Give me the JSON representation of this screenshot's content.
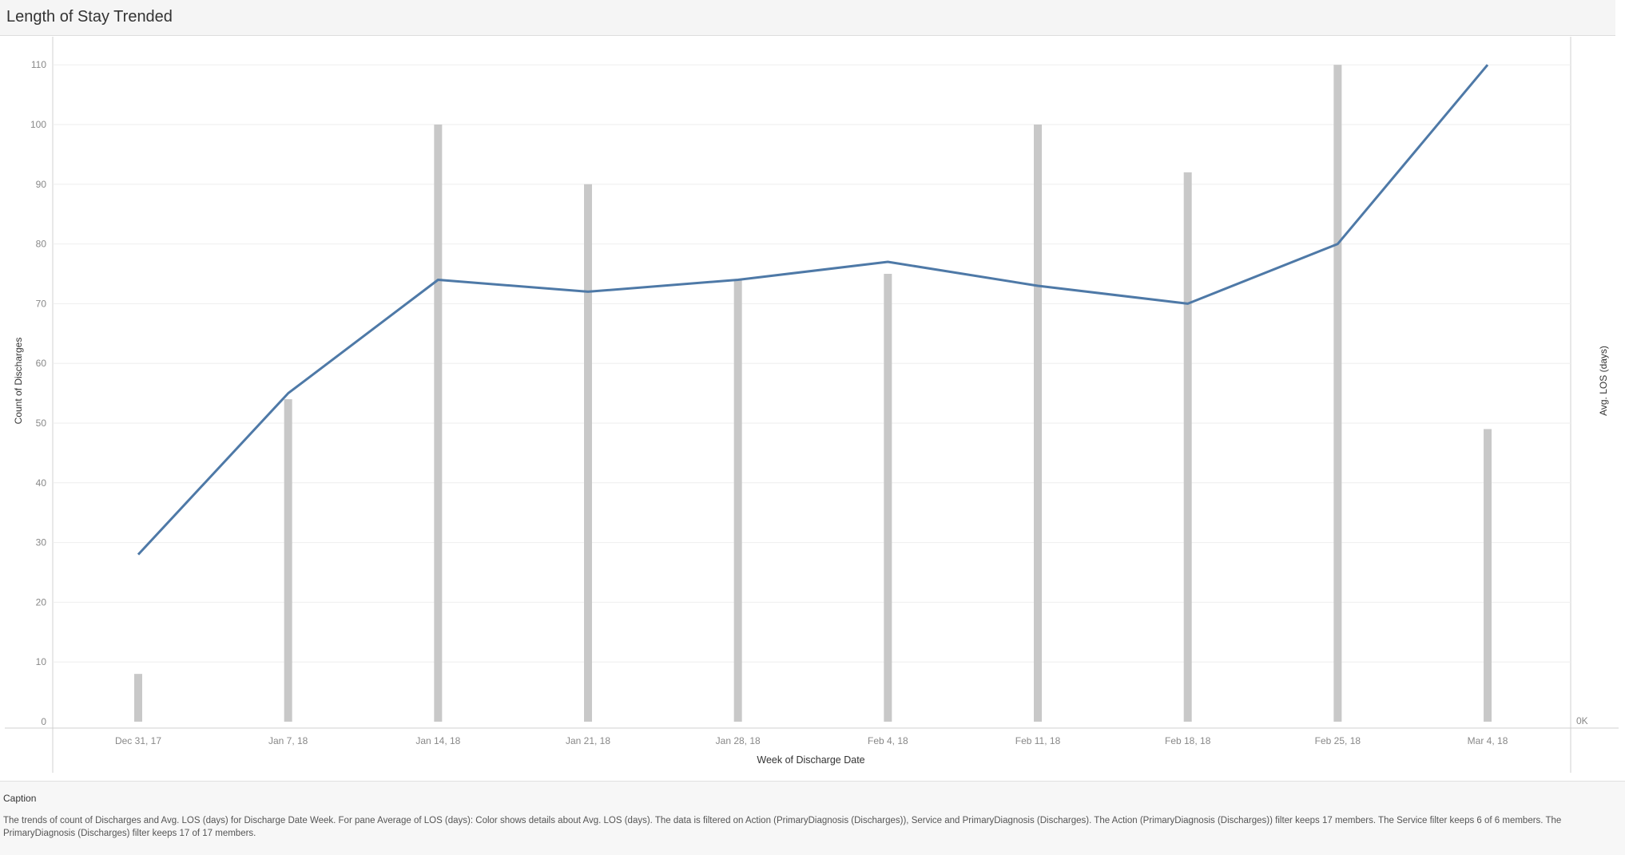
{
  "header": {
    "title": "Length of Stay Trended"
  },
  "chart_data": {
    "type": "bar+line",
    "categories": [
      "Dec 31, 17",
      "Jan 7, 18",
      "Jan 14, 18",
      "Jan 21, 18",
      "Jan 28, 18",
      "Feb 4, 18",
      "Feb 11, 18",
      "Feb 18, 18",
      "Feb 25, 18",
      "Mar 4, 18"
    ],
    "series": [
      {
        "values": [
          8,
          54,
          100,
          90,
          74,
          75,
          100,
          92,
          110,
          49
        ],
        "color": "#c8c8c8"
      },
      {
        "values": [
          28,
          55,
          74,
          72,
          74,
          77,
          73,
          70,
          80,
          110
        ],
        "color": "#4e79a7"
      }
    ],
    "xlabel": "Week of Discharge Date",
    "ylabel": "Count of Discharges",
    "ylabel_right": "Avg. LOS (days)",
    "y_ticks": [
      "0",
      "10",
      "20",
      "30",
      "40",
      "50",
      "60",
      "70",
      "80",
      "90",
      "100",
      "110"
    ],
    "right_tick": "0K",
    "ylim": [
      0,
      115
    ],
    "grid": true
  },
  "caption": {
    "heading": "Caption",
    "text": "The trends of count of Discharges and Avg. LOS (days) for Discharge Date Week.  For pane Average of LOS (days):  Color shows details about Avg. LOS (days). The data is filtered on Action (PrimaryDiagnosis (Discharges)), Service and PrimaryDiagnosis (Discharges). The Action (PrimaryDiagnosis (Discharges)) filter keeps 17 members. The Service filter keeps 6 of 6 members. The PrimaryDiagnosis (Discharges) filter keeps 17 of 17 members."
  }
}
